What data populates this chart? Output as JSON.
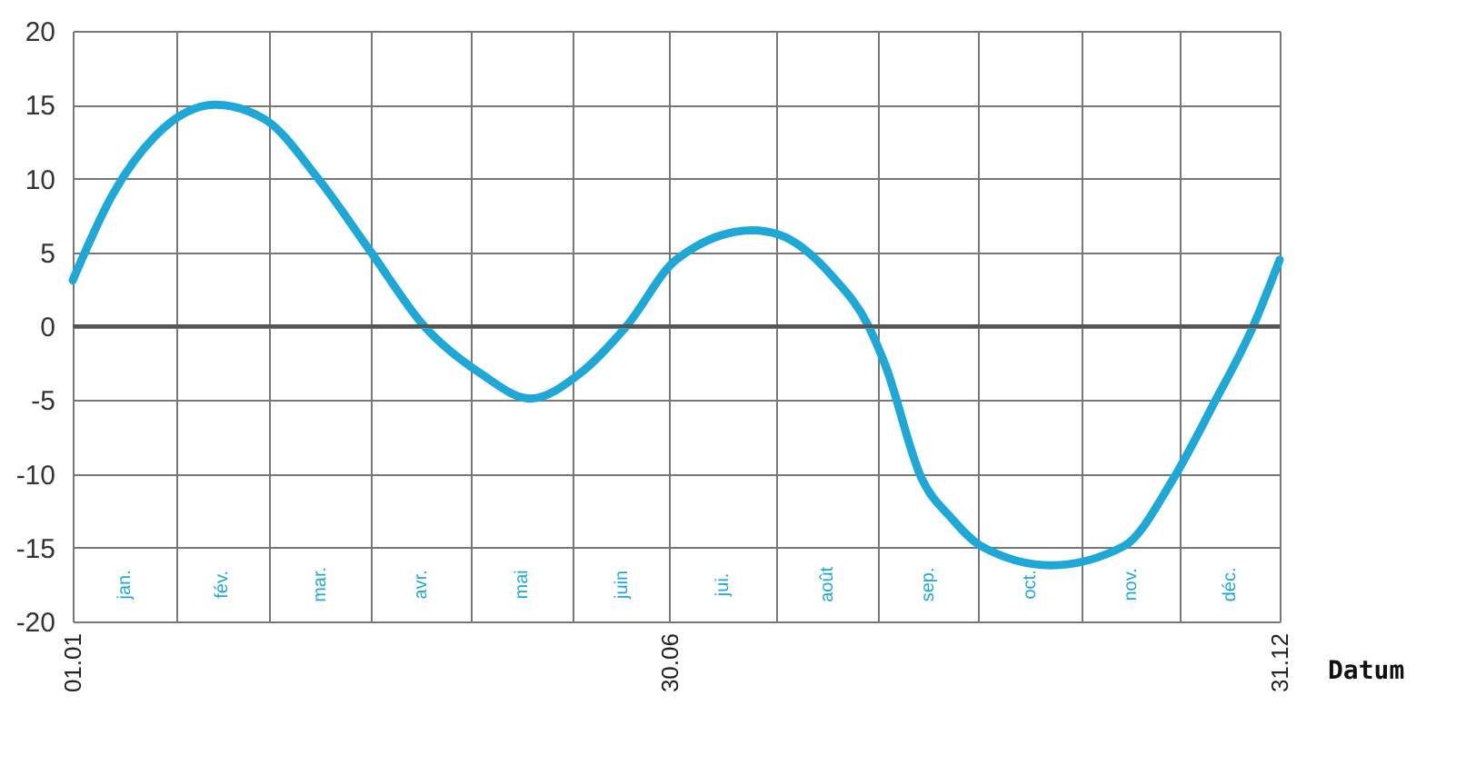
{
  "chart_data": {
    "type": "line",
    "xlabel": "Datum",
    "x": [
      "--01-01",
      "--01-13",
      "--01-26",
      "--02-13",
      "--02-28",
      "--03-16",
      "--04-01",
      "--04-17",
      "--05-04",
      "--05-19",
      "--06-03",
      "--06-17",
      "--07-02",
      "--07-25",
      "--08-02",
      "--08-18",
      "--08-29",
      "--09-03",
      "--09-14",
      "--09-23",
      "--10-02",
      "--10-23",
      "--11-14",
      "--11-29",
      "--12-11",
      "--12-23",
      "--12-31"
    ],
    "series": [
      {
        "color": "#1ea8d8",
        "values": [
          3.1,
          8.9,
          12.9,
          15,
          14,
          10,
          5,
          0,
          -3.2,
          -4.9,
          -3.2,
          0,
          4.5,
          6.5,
          6.2,
          3.4,
          0,
          -2.6,
          -10.3,
          -13,
          -14.9,
          -16.2,
          -14.9,
          -10.3,
          -5.3,
          0,
          4.5
        ]
      }
    ],
    "xlim": [
      "--01-01",
      "--12-31"
    ],
    "xticks": [
      {
        "value": "--01-01",
        "label": "01.01"
      },
      {
        "value": "--02-01",
        "label": null
      },
      {
        "value": "--03-01",
        "label": null
      },
      {
        "value": "--04-01",
        "label": null
      },
      {
        "value": "--05-01",
        "label": null
      },
      {
        "value": "--06-01",
        "label": null
      },
      {
        "value": "--06-30",
        "label": "30.06"
      },
      {
        "value": "--08-01",
        "label": null
      },
      {
        "value": "--09-01",
        "label": null
      },
      {
        "value": "--10-01",
        "label": null
      },
      {
        "value": "--11-01",
        "label": null
      },
      {
        "value": "--12-01",
        "label": null
      },
      {
        "value": "--12-31",
        "label": "31.12"
      }
    ],
    "ylim": [
      -20,
      20
    ],
    "yticks": [
      -20,
      -15,
      -10,
      -5,
      0,
      5,
      10,
      15,
      20
    ],
    "grid": true,
    "ref_lines": [
      {
        "axis": "y",
        "value": 0,
        "color": "#555555"
      }
    ],
    "annotations": [
      "jan.",
      "fév.",
      "mar.",
      "avr.",
      "mai",
      "juin",
      "jui.",
      "août",
      "sep.",
      "oct.",
      "nov.",
      "déc."
    ],
    "line_style": "solid"
  }
}
